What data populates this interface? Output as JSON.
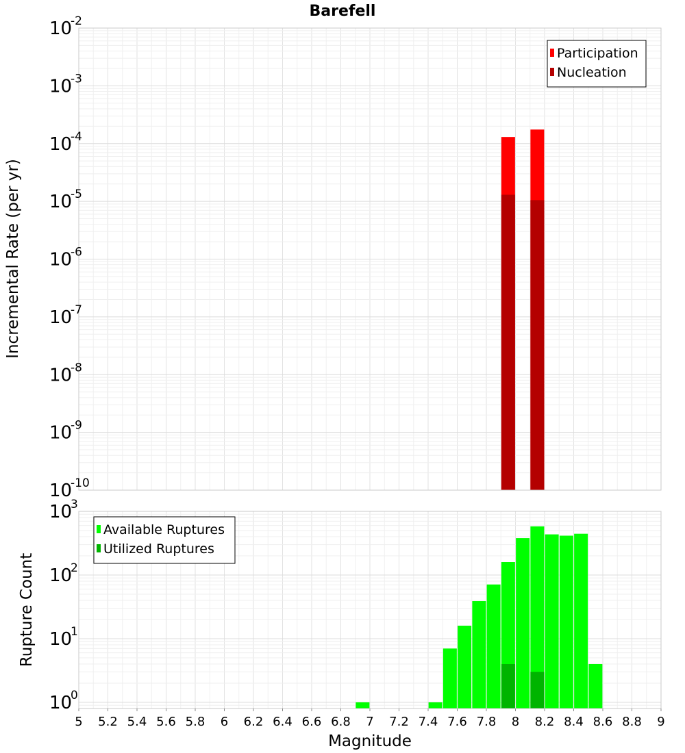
{
  "chart_data": [
    {
      "type": "bar",
      "title": "Barefell",
      "xlabel": "Magnitude",
      "ylabel": "Incremental Rate (per yr)",
      "xlim": [
        5,
        9
      ],
      "ylim": [
        1e-10,
        0.01
      ],
      "yscale": "log",
      "grid": true,
      "legend_position": "top-right",
      "x_ticks": [
        "5",
        "5.2",
        "5.4",
        "5.6",
        "5.8",
        "6",
        "6.2",
        "6.4",
        "6.6",
        "6.8",
        "7",
        "7.2",
        "7.4",
        "7.6",
        "7.8",
        "8",
        "8.2",
        "8.4",
        "8.6",
        "8.8",
        "9"
      ],
      "y_tick_exponents": [
        "-10",
        "-9",
        "-8",
        "-7",
        "-6",
        "-5",
        "-4",
        "-3",
        "-2"
      ],
      "y_tick_base": "10",
      "series": [
        {
          "name": "Participation",
          "color": "#ff0000",
          "x": [
            7.95,
            8.15
          ],
          "values": [
            0.00013,
            0.000175
          ]
        },
        {
          "name": "Nucleation",
          "color": "#b40000",
          "x": [
            7.95,
            8.15
          ],
          "values": [
            1.3e-05,
            1.05e-05
          ]
        }
      ]
    },
    {
      "type": "bar",
      "title": "",
      "xlabel": "Magnitude",
      "ylabel": "Rupture Count",
      "xlim": [
        5,
        9
      ],
      "ylim": [
        0.8,
        1000
      ],
      "yscale": "log",
      "grid": true,
      "legend_position": "top-left",
      "y_tick_exponents": [
        "0",
        "1",
        "2",
        "3"
      ],
      "y_tick_base": "10",
      "series": [
        {
          "name": "Available Ruptures",
          "color": "#00ff00",
          "x": [
            6.95,
            7.45,
            7.55,
            7.65,
            7.75,
            7.85,
            7.95,
            8.05,
            8.15,
            8.25,
            8.35,
            8.45,
            8.55
          ],
          "values": [
            1,
            1,
            7,
            16,
            39,
            71,
            160,
            380,
            580,
            435,
            415,
            445,
            4
          ]
        },
        {
          "name": "Utilized Ruptures",
          "color": "#00b400",
          "x": [
            7.95,
            8.15
          ],
          "values": [
            4,
            3
          ]
        }
      ]
    }
  ]
}
